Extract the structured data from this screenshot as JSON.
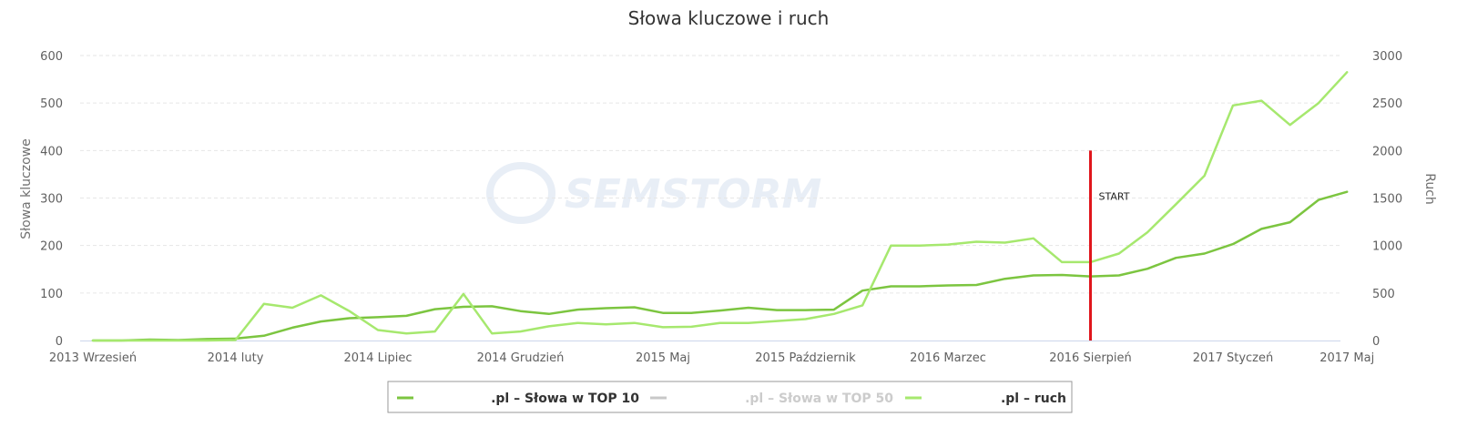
{
  "watermark": "SEMSTORM",
  "colors": {
    "top10": "#7cc540",
    "top50": "#c8c8c8",
    "ruch": "#a6e86e",
    "start_line": "#e0161c"
  },
  "chart_data": {
    "type": "line",
    "title": "Słowa kluczowe i ruch",
    "ylabel_left": "Słowa kluczowe",
    "ylabel_right": "Ruch",
    "ylim_left": [
      0,
      600
    ],
    "ylim_right": [
      0,
      3000
    ],
    "yticks_left": [
      "0",
      "100",
      "200",
      "300",
      "400",
      "500",
      "600"
    ],
    "yticks_right": [
      "0",
      "500",
      "1000",
      "1500",
      "2000",
      "2500",
      "3000"
    ],
    "grid": true,
    "legend_position": "bottom-center",
    "x_tick_labels": [
      {
        "index": 0,
        "label": "2013 Wrzesień"
      },
      {
        "index": 5,
        "label": "2014 luty"
      },
      {
        "index": 10,
        "label": "2014 Lipiec"
      },
      {
        "index": 15,
        "label": "2014 Grudzień"
      },
      {
        "index": 20,
        "label": "2015 Maj"
      },
      {
        "index": 25,
        "label": "2015 Październik"
      },
      {
        "index": 30,
        "label": "2016 Marzec"
      },
      {
        "index": 35,
        "label": "2016 Sierpień"
      },
      {
        "index": 40,
        "label": "2017 Styczeń"
      },
      {
        "index": 44,
        "label": "2017 Maj"
      }
    ],
    "series": [
      {
        "name": ".pl – Słowa w TOP 10",
        "axis": "left",
        "color": "#7cc540",
        "visible": true,
        "values": [
          0,
          0,
          2,
          1,
          3,
          4,
          10,
          27,
          40,
          47,
          49,
          52,
          66,
          71,
          72,
          62,
          56,
          65,
          68,
          70,
          58,
          58,
          63,
          69,
          64,
          64,
          65,
          105,
          114,
          114,
          116,
          117,
          130,
          137,
          138,
          135,
          137,
          151,
          174,
          183,
          203,
          235,
          249,
          296,
          313
        ]
      },
      {
        "name": ".pl – Słowa w TOP 50",
        "axis": "left",
        "color": "#c8c8c8",
        "visible": false,
        "values": []
      },
      {
        "name": ".pl – ruch",
        "axis": "right",
        "color": "#a6e86e",
        "visible": true,
        "values": [
          0,
          0,
          0,
          0,
          0,
          5,
          385,
          345,
          475,
          310,
          110,
          75,
          95,
          490,
          75,
          95,
          150,
          185,
          170,
          185,
          140,
          145,
          185,
          185,
          205,
          225,
          280,
          370,
          1000,
          1000,
          1010,
          1040,
          1030,
          1075,
          825,
          825,
          915,
          1140,
          1435,
          1735,
          2475,
          2525,
          2270,
          2500,
          2825
        ]
      }
    ],
    "annotations": [
      {
        "type": "vertical_line",
        "x_index": 35,
        "y_from": 0,
        "y_to": 400,
        "axis": "left",
        "label": "START",
        "color": "#e0161c"
      }
    ]
  }
}
